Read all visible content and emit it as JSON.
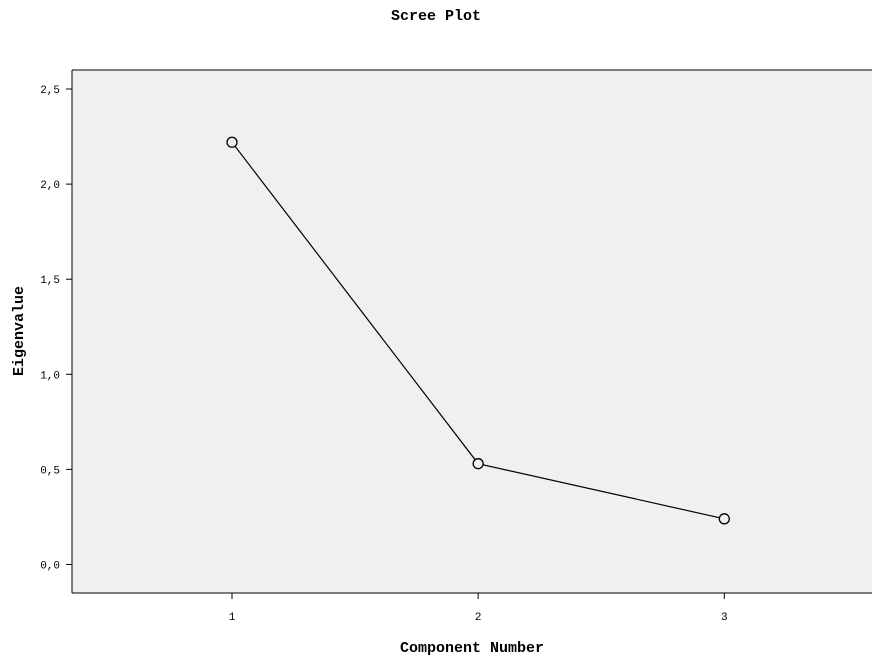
{
  "chart_data": {
    "type": "line",
    "title": "Scree Plot",
    "xlabel": "Component Number",
    "ylabel": "Eigenvalue",
    "x": [
      1,
      2,
      3
    ],
    "x_tick_labels": [
      "1",
      "2",
      "3"
    ],
    "y": [
      2.22,
      0.53,
      0.24
    ],
    "ylim": [
      -0.15,
      2.6
    ],
    "xlim": [
      0.35,
      3.6
    ],
    "y_ticks": [
      0.0,
      0.5,
      1.0,
      1.5,
      2.0,
      2.5
    ],
    "y_tick_labels": [
      "0,0",
      "0,5",
      "1,0",
      "1,5",
      "2,0",
      "2,5"
    ],
    "grid": false,
    "marker": "open-circle",
    "colors": {
      "plot_background": "#f0f0f0",
      "line": "#000000",
      "marker_fill": "#f0f0f0"
    }
  }
}
